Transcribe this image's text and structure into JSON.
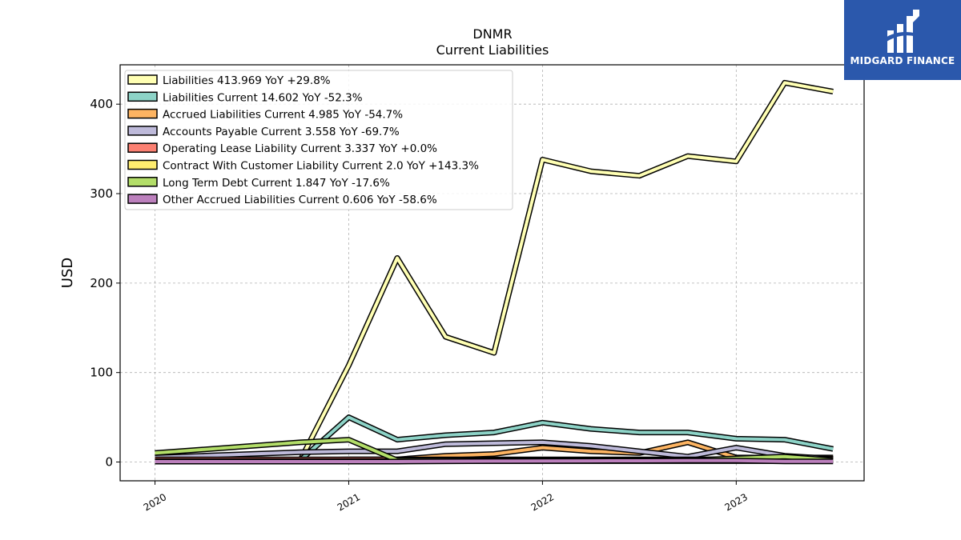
{
  "chart_data": {
    "type": "line",
    "title": "DNMR",
    "subtitle": "Current  Liabilities",
    "ylabel": "USD",
    "xlabel": "",
    "x_ticks": [
      "2020",
      "2021",
      "2022",
      "2023"
    ],
    "y_ticks": [
      0,
      100,
      200,
      300,
      400
    ],
    "ylim": [
      -21,
      444
    ],
    "xlim": [
      2019.82,
      2023.66
    ],
    "grid": true,
    "legend_position": "top-left",
    "series": [
      {
        "name": "Liabilities",
        "legend": "Liabilities  413.969 YoY +29.8%",
        "color": "#ffffb3",
        "x": [
          2020.0,
          2020.75,
          2021.0,
          2021.25,
          2021.5,
          2021.75,
          2022.0,
          2022.25,
          2022.5,
          2022.75,
          2023.0,
          2023.25,
          2023.5
        ],
        "y": [
          2,
          2,
          108,
          228,
          140,
          122,
          338,
          325,
          320,
          342,
          336,
          424,
          414
        ]
      },
      {
        "name": "Liabilities Current",
        "legend": "Liabilities Current  14.602 YoY -52.3%",
        "color": "#8dd3c7",
        "x": [
          2020.0,
          2020.75,
          2021.0,
          2021.25,
          2021.5,
          2021.75,
          2022.0,
          2022.25,
          2022.5,
          2022.75,
          2023.0,
          2023.25,
          2023.5
        ],
        "y": [
          2,
          2,
          50,
          25,
          30,
          33,
          44,
          37,
          33,
          33,
          26,
          25,
          14.6
        ]
      },
      {
        "name": "Accrued Liabilities Current",
        "legend": "Accrued Liabilities Current  4.985 YoY -54.7%",
        "color": "#fdb462",
        "x": [
          2020.0,
          2020.75,
          2021.0,
          2021.25,
          2021.5,
          2021.75,
          2022.0,
          2022.25,
          2022.5,
          2022.75,
          2023.0,
          2023.25,
          2023.5
        ],
        "y": [
          2,
          2,
          3,
          3,
          7,
          9,
          16,
          12,
          10,
          22,
          5,
          5,
          5
        ]
      },
      {
        "name": "Accounts Payable Current",
        "legend": "Accounts Payable Current  3.558 YoY -69.7%",
        "color": "#bebada",
        "x": [
          2020.0,
          2020.75,
          2021.0,
          2021.25,
          2021.5,
          2021.75,
          2022.0,
          2022.25,
          2022.5,
          2022.75,
          2023.0,
          2023.25,
          2023.5
        ],
        "y": [
          5,
          11,
          12,
          12,
          20,
          21,
          22,
          18,
          12,
          6,
          16,
          7,
          3.6
        ]
      },
      {
        "name": "Operating Lease Liability Current",
        "legend": "Operating Lease Liability Current  3.337 YoY +0.0%",
        "color": "#fb8072",
        "x": [
          2020.0,
          2020.75,
          2021.0,
          2021.25,
          2021.5,
          2021.75,
          2022.0,
          2022.25,
          2022.5,
          2022.75,
          2023.0,
          2023.25,
          2023.5
        ],
        "y": [
          3,
          3,
          3,
          3,
          3,
          3,
          3,
          3,
          3,
          3,
          3,
          3,
          3.3
        ]
      },
      {
        "name": "Contract With Customer Liability Current",
        "legend": "Contract With Customer Liability Current  2.0 YoY +143.3%",
        "color": "#ffed6f",
        "x": [
          2020.0,
          2020.75,
          2021.0,
          2021.25,
          2021.5,
          2021.75,
          2022.0,
          2022.25,
          2022.5,
          2022.75,
          2023.0,
          2023.25,
          2023.5
        ],
        "y": [
          1,
          1,
          1,
          1,
          1,
          1,
          1,
          1,
          1,
          1,
          1,
          1,
          2
        ]
      },
      {
        "name": "Long Term Debt Current",
        "legend": "Long Term Debt Current  1.847 YoY -17.6%",
        "color": "#b3de69",
        "x": [
          2020.0,
          2020.75,
          2021.0,
          2021.25,
          2021.5,
          2021.75,
          2022.0,
          2022.25,
          2022.5,
          2022.75,
          2023.0,
          2023.25,
          2023.5
        ],
        "y": [
          10,
          22,
          25,
          2,
          2,
          2,
          2,
          2,
          2,
          2,
          4,
          6,
          1.8
        ]
      },
      {
        "name": "Other Accrued Liabilities Current",
        "legend": "Other Accrued Liabilities Current  0.606 YoY -58.6%",
        "color": "#bc80bd",
        "x": [
          2020.0,
          2020.75,
          2021.0,
          2021.25,
          2021.5,
          2021.75,
          2022.0,
          2022.25,
          2022.5,
          2022.75,
          2023.0,
          2023.25,
          2023.5
        ],
        "y": [
          0.5,
          0.5,
          0.5,
          0.5,
          0.8,
          1,
          1.2,
          1.3,
          1.4,
          1.5,
          1.5,
          0.7,
          0.6
        ]
      }
    ]
  },
  "logo": {
    "text": "MIDGARD FINANCE",
    "background": "#2b58ac"
  }
}
